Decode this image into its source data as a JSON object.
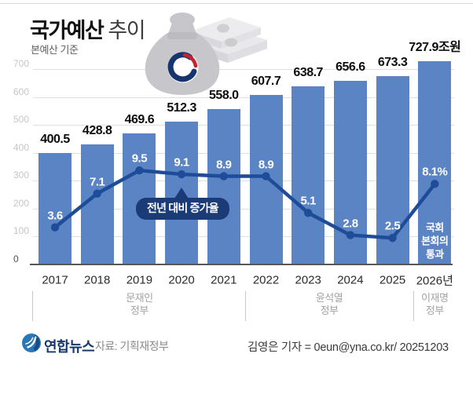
{
  "header": {
    "title_bold": "국가예산",
    "title_light": "추이",
    "subtitle": "본예산 기준"
  },
  "chart_data": {
    "type": "bar",
    "title": "국가예산 추이",
    "subtitle": "본예산 기준",
    "categories": [
      "2017",
      "2018",
      "2019",
      "2020",
      "2021",
      "2022",
      "2023",
      "2024",
      "2025",
      "2026년"
    ],
    "series": [
      {
        "name": "본예산(조원)",
        "type": "bar",
        "color": "#5b84c4",
        "values": [
          400.5,
          428.8,
          469.6,
          512.3,
          558.0,
          607.7,
          638.7,
          656.6,
          673.3,
          727.9
        ],
        "labels": [
          "400.5",
          "428.8",
          "469.6",
          "512.3",
          "558.0",
          "607.7",
          "638.7",
          "656.6",
          "673.3",
          "727.9조원"
        ]
      },
      {
        "name": "전년 대비 증가율(%)",
        "type": "line",
        "color": "#1e4c99",
        "values": [
          3.6,
          7.1,
          9.5,
          9.1,
          8.9,
          8.9,
          5.1,
          2.8,
          2.5,
          8.1
        ],
        "labels": [
          "3.6",
          "7.1",
          "9.5",
          "9.1",
          "8.9",
          "8.9",
          "5.1",
          "2.8",
          "2.5",
          "8.1%"
        ]
      }
    ],
    "y_ticks": [
      0,
      100,
      200,
      300,
      400,
      500,
      600,
      700
    ],
    "ylim": [
      0,
      700
    ],
    "grid": "horizontal",
    "legend_position": "none",
    "annotations": {
      "growth_callout": "전년 대비 증가율",
      "assembly_note": "국회\n본회의\n통과"
    },
    "periods": [
      {
        "label": "문재인\n정부",
        "start": 0,
        "end": 4
      },
      {
        "label": "윤석열\n정부",
        "start": 5,
        "end": 8
      },
      {
        "label": "이재명\n정부",
        "start": 9,
        "end": 9
      }
    ]
  },
  "footer": {
    "brand": "연합뉴스",
    "source": "자료: 기획재정부",
    "credit": "김영은 기자 = 0eun@yna.co.kr/ 20251203"
  },
  "colors": {
    "bar": "#5b84c4",
    "line": "#1e4c99",
    "callout_bg": "#1b3b77",
    "brand_navy": "#17386a"
  }
}
